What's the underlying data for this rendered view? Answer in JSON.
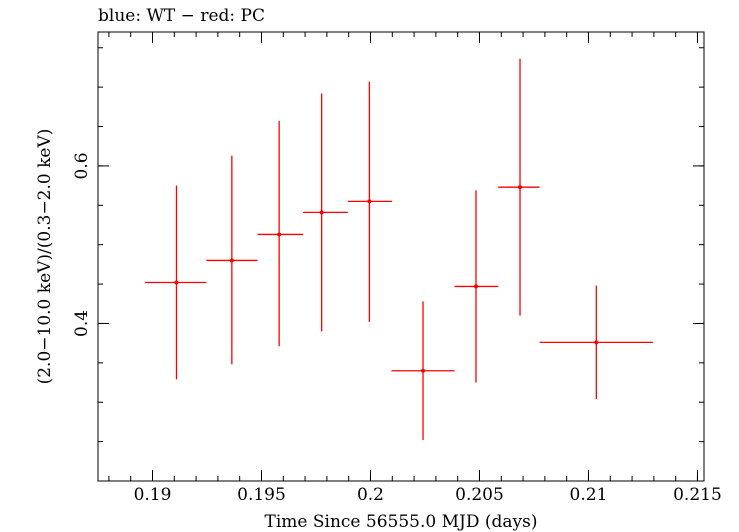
{
  "chart_data": {
    "type": "scatter",
    "title": "blue: WT − red: PC",
    "xlabel": "Time Since 56555.0 MJD (days)",
    "ylabel": "(2.0−10.0 keV)/(0.3−2.0 keV)",
    "xlim": [
      0.1875,
      0.2153
    ],
    "ylim": [
      0.2,
      0.77
    ],
    "x_ticks": [
      {
        "value": 0.19,
        "label": "0.19"
      },
      {
        "value": 0.195,
        "label": "0.195"
      },
      {
        "value": 0.2,
        "label": "0.2"
      },
      {
        "value": 0.205,
        "label": "0.205"
      },
      {
        "value": 0.21,
        "label": "0.21"
      },
      {
        "value": 0.215,
        "label": "0.215"
      }
    ],
    "y_ticks": [
      {
        "value": 0.4,
        "label": "0.4"
      },
      {
        "value": 0.6,
        "label": "0.6"
      }
    ],
    "x_minor_step": 0.001,
    "y_minor_step": 0.05,
    "series": [
      {
        "color": "#ff0000",
        "points": [
          {
            "x": 0.1911,
            "xlo": 0.18966,
            "xhi": 0.19247,
            "y": 0.452,
            "ylo": 0.329,
            "yhi": 0.575
          },
          {
            "x": 0.19364,
            "xlo": 0.19247,
            "xhi": 0.19482,
            "y": 0.48,
            "ylo": 0.348,
            "yhi": 0.613
          },
          {
            "x": 0.19581,
            "xlo": 0.19482,
            "xhi": 0.19691,
            "y": 0.513,
            "ylo": 0.371,
            "yhi": 0.657
          },
          {
            "x": 0.19776,
            "xlo": 0.19691,
            "xhi": 0.19896,
            "y": 0.541,
            "ylo": 0.39,
            "yhi": 0.692
          },
          {
            "x": 0.19995,
            "xlo": 0.19896,
            "xhi": 0.20099,
            "y": 0.555,
            "ylo": 0.402,
            "yhi": 0.707
          },
          {
            "x": 0.20241,
            "xlo": 0.20096,
            "xhi": 0.20386,
            "y": 0.34,
            "ylo": 0.252,
            "yhi": 0.428
          },
          {
            "x": 0.20484,
            "xlo": 0.20386,
            "xhi": 0.20586,
            "y": 0.447,
            "ylo": 0.325,
            "yhi": 0.569
          },
          {
            "x": 0.20686,
            "xlo": 0.20586,
            "xhi": 0.20776,
            "y": 0.573,
            "ylo": 0.41,
            "yhi": 0.736
          },
          {
            "x": 0.21036,
            "xlo": 0.20776,
            "xhi": 0.21296,
            "y": 0.376,
            "ylo": 0.304,
            "yhi": 0.448
          }
        ]
      }
    ]
  }
}
